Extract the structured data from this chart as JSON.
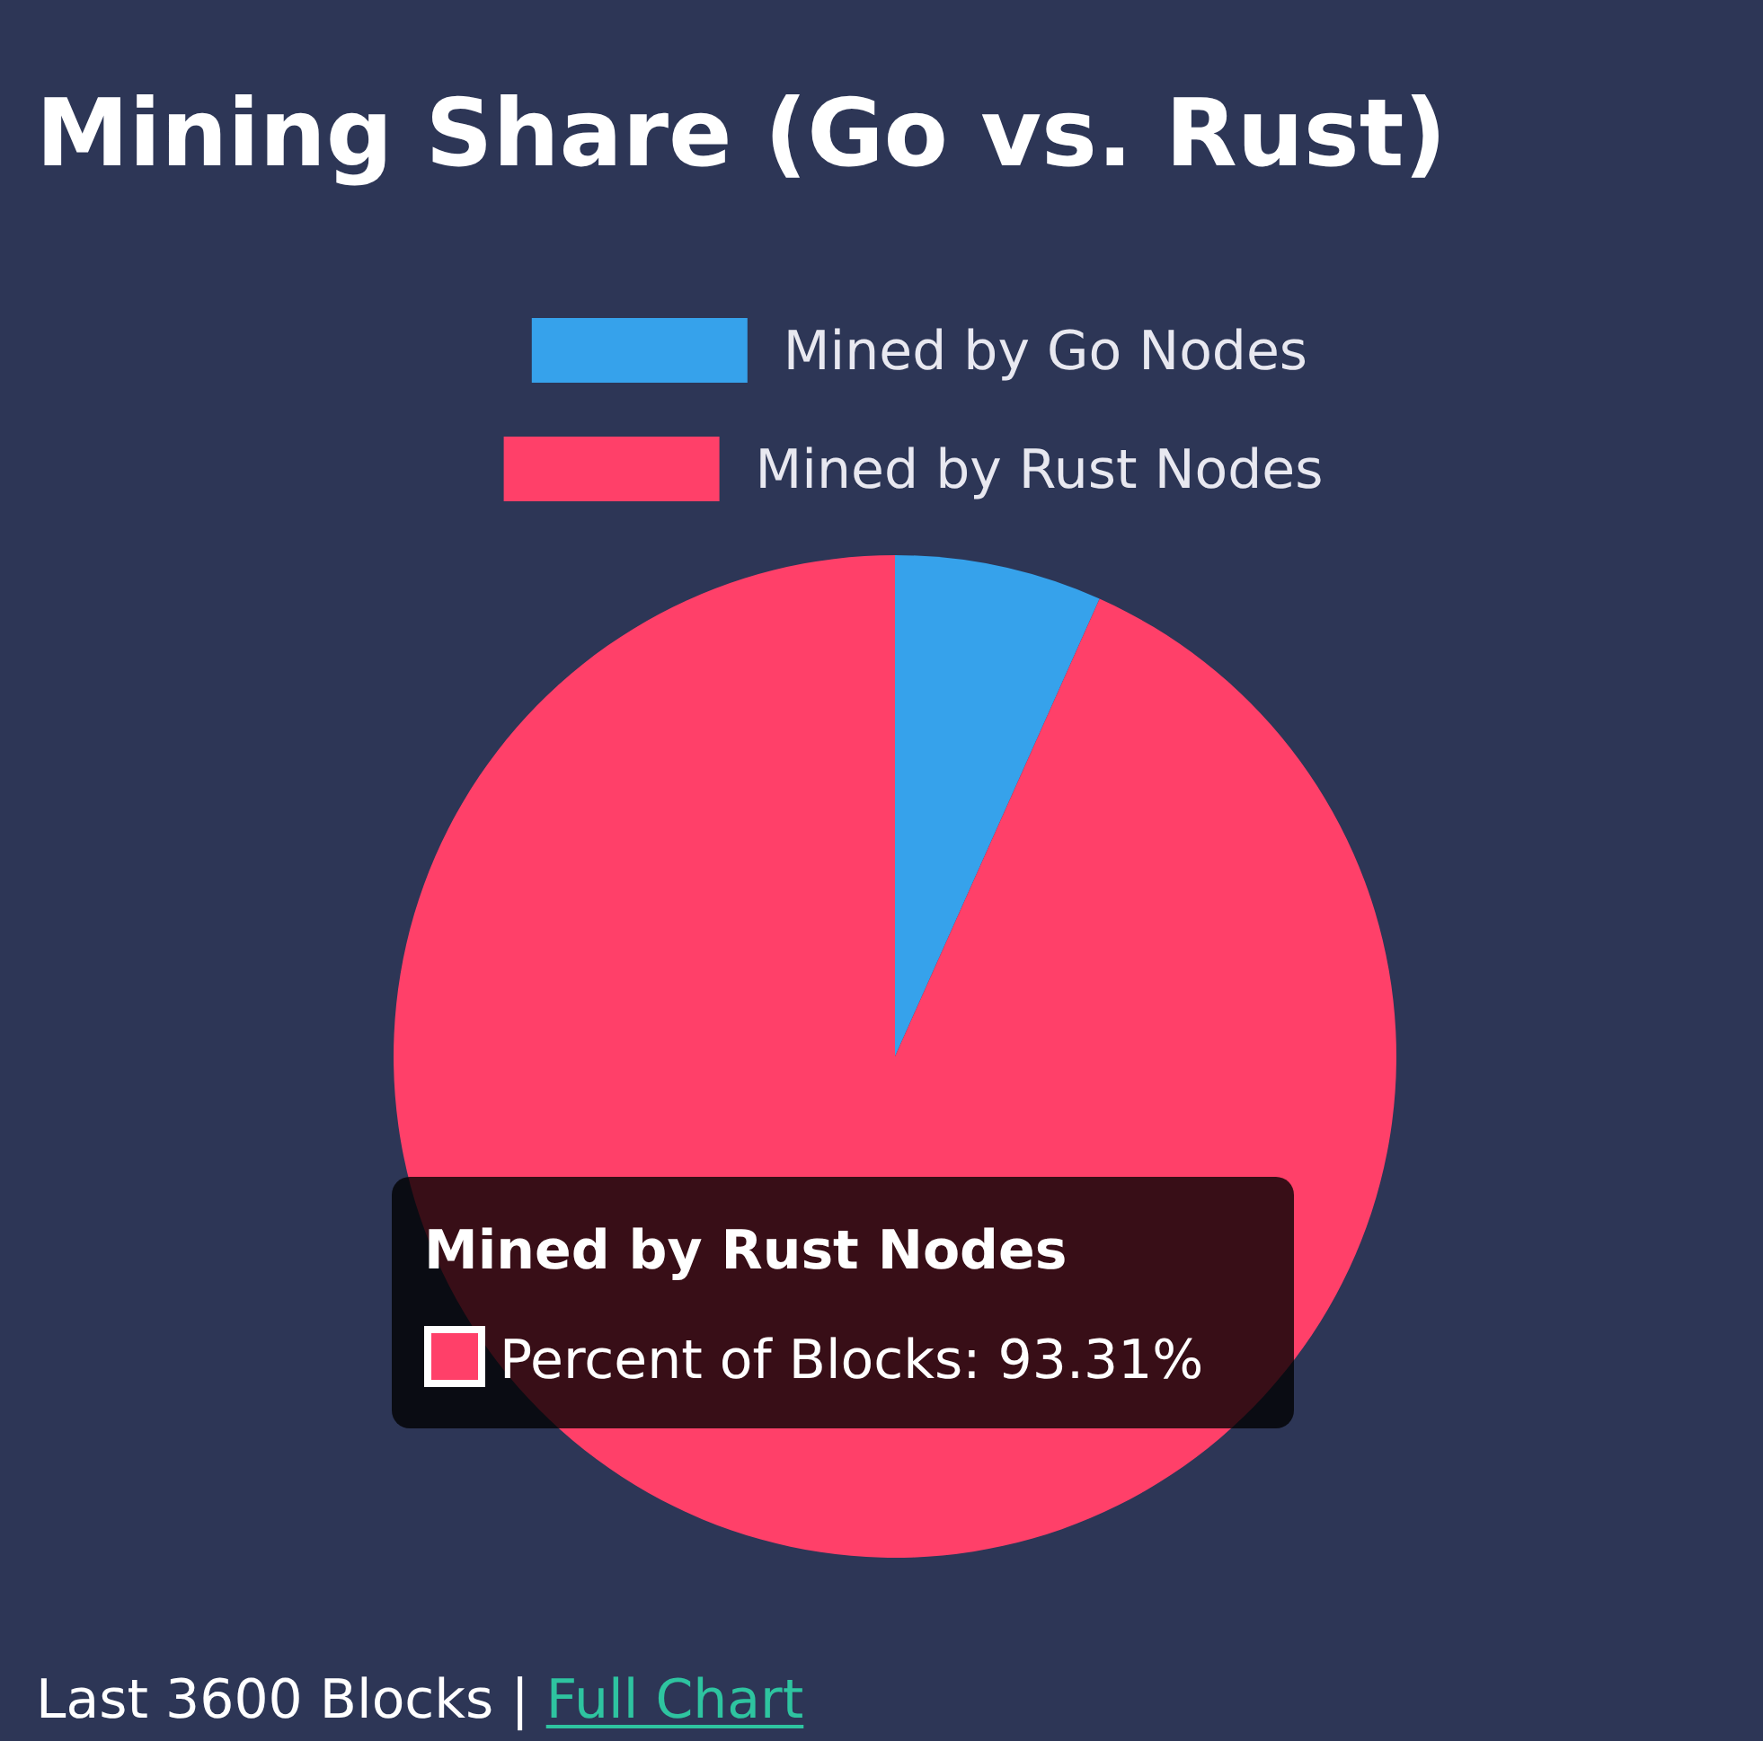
{
  "chart_data": {
    "type": "pie",
    "title": "Mining Share (Go vs. Rust)",
    "categories": [
      "Mined by Go Nodes",
      "Mined by Rust Nodes"
    ],
    "values": [
      6.69,
      93.31
    ],
    "colors": [
      "#36a2eb",
      "#ff4069"
    ],
    "legend": "top",
    "annotations": [
      "Mined by Rust Nodes",
      "Percent of Blocks: 93.31%",
      "Last 3600 Blocks | ",
      "Full Chart"
    ]
  }
}
